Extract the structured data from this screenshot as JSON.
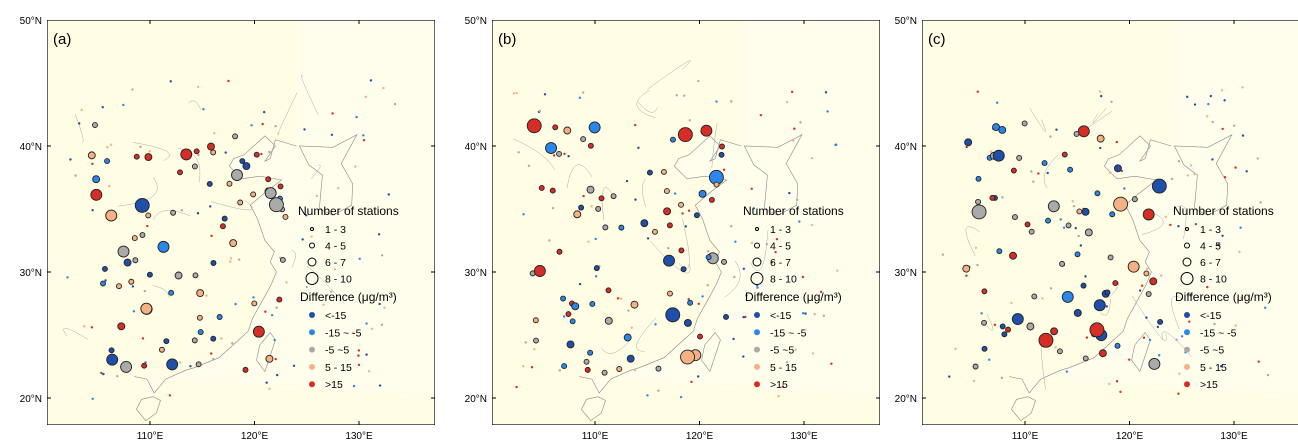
{
  "panels": [
    {
      "label": "(a)"
    },
    {
      "label": "(b)"
    },
    {
      "label": "(c)"
    }
  ],
  "lat_ticks": [
    "50°N",
    "40°N",
    "30°N",
    "20°N"
  ],
  "lon_ticks": [
    "110°E",
    "120°E",
    "130°E"
  ],
  "legend": {
    "size_title": "Number of stations",
    "size_labels": [
      "1 - 3",
      "4 - 5",
      "6 - 7",
      "8 - 10"
    ],
    "diff_title": "Difference (μg/m³)",
    "diff_labels": [
      "<-15",
      "-15 ~ -5",
      "-5 ~5",
      "5 - 15",
      ">15"
    ],
    "diff_colors": [
      "#1f4fa8",
      "#2c86e8",
      "#aaaaaa",
      "#f4b183",
      "#d62e26"
    ]
  }
}
